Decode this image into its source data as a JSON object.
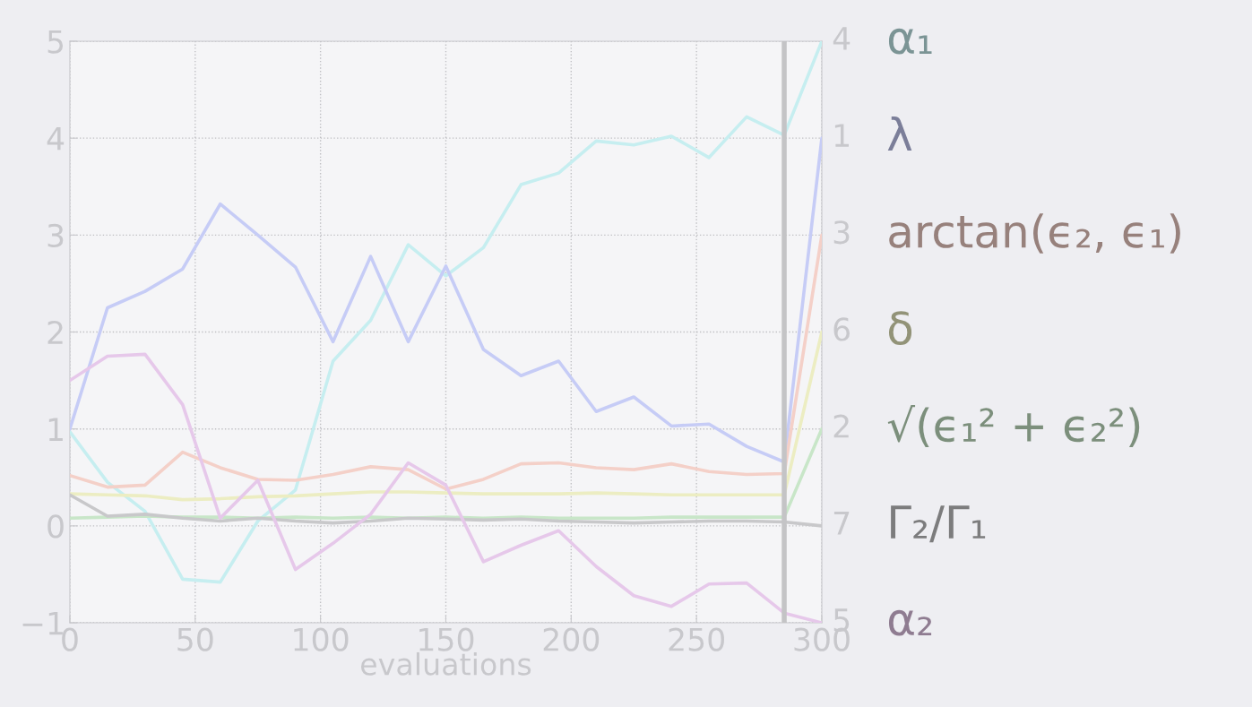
{
  "chart_data": {
    "type": "line",
    "xlabel": "evaluations",
    "x": [
      0,
      15,
      30,
      45,
      60,
      75,
      90,
      105,
      120,
      135,
      150,
      165,
      180,
      195,
      210,
      225,
      240,
      255,
      270,
      285,
      300
    ],
    "series": [
      {
        "name": "α₁",
        "color": "#c6eef0",
        "values": [
          0.97,
          0.45,
          0.15,
          -0.55,
          -0.58,
          0.05,
          0.37,
          1.7,
          2.12,
          2.9,
          2.58,
          2.87,
          3.52,
          3.64,
          3.97,
          3.93,
          4.02,
          3.8,
          4.22,
          4.03,
          5
        ]
      },
      {
        "name": "λ",
        "color": "#c6ccf6",
        "values": [
          1.0,
          2.25,
          2.42,
          2.65,
          3.32,
          3.0,
          2.67,
          1.9,
          2.78,
          1.9,
          2.68,
          1.82,
          1.55,
          1.7,
          1.18,
          1.33,
          1.03,
          1.05,
          0.82,
          0.66,
          4
        ]
      },
      {
        "name": "arctan(ϵ₂, ϵ₁)",
        "color": "#f4d0c8",
        "values": [
          0.52,
          0.4,
          0.42,
          0.76,
          0.6,
          0.48,
          0.47,
          0.53,
          0.61,
          0.58,
          0.38,
          0.48,
          0.64,
          0.65,
          0.6,
          0.58,
          0.64,
          0.56,
          0.53,
          0.54,
          3
        ]
      },
      {
        "name": "δ",
        "color": "#ecedc2",
        "values": [
          0.33,
          0.32,
          0.31,
          0.27,
          0.28,
          0.3,
          0.31,
          0.33,
          0.35,
          0.35,
          0.34,
          0.33,
          0.33,
          0.33,
          0.34,
          0.33,
          0.32,
          0.32,
          0.32,
          0.32,
          2
        ]
      },
      {
        "name": "√(ϵ₁² + ϵ₂²)",
        "color": "#c8e6c8",
        "values": [
          0.08,
          0.09,
          0.1,
          0.09,
          0.09,
          0.08,
          0.09,
          0.08,
          0.09,
          0.08,
          0.09,
          0.08,
          0.09,
          0.08,
          0.08,
          0.08,
          0.09,
          0.09,
          0.09,
          0.09,
          1
        ]
      },
      {
        "name": "Γ₂/Γ₁",
        "color": "#c8c8ca",
        "values": [
          0.32,
          0.1,
          0.12,
          0.08,
          0.05,
          0.08,
          0.05,
          0.03,
          0.05,
          0.08,
          0.07,
          0.06,
          0.07,
          0.05,
          0.04,
          0.03,
          0.04,
          0.05,
          0.05,
          0.04,
          0
        ]
      },
      {
        "name": "α₂",
        "color": "#e6c8ea",
        "values": [
          1.5,
          1.75,
          1.77,
          1.25,
          0.08,
          0.47,
          -0.45,
          -0.18,
          0.12,
          0.65,
          0.42,
          -0.37,
          -0.2,
          -0.05,
          -0.42,
          -0.72,
          -0.83,
          -0.6,
          -0.59,
          -0.9,
          -1
        ]
      }
    ],
    "xlim": [
      0,
      300
    ],
    "xticks": [
      0,
      50,
      100,
      150,
      200,
      250,
      300
    ],
    "ylim": [
      -1,
      5
    ],
    "yticks": [
      {
        "value": -1,
        "label": "−1"
      },
      0,
      1,
      2,
      3,
      4,
      5
    ],
    "annotations": [
      "4",
      "1",
      "3",
      "6",
      "2",
      "7",
      "5"
    ],
    "ref_lines": [
      {
        "axis": "x",
        "value": 285,
        "label": null,
        "color": "#c4c4c6"
      }
    ],
    "grid": true,
    "line_style": "solid",
    "marker": "none",
    "legend": false
  }
}
